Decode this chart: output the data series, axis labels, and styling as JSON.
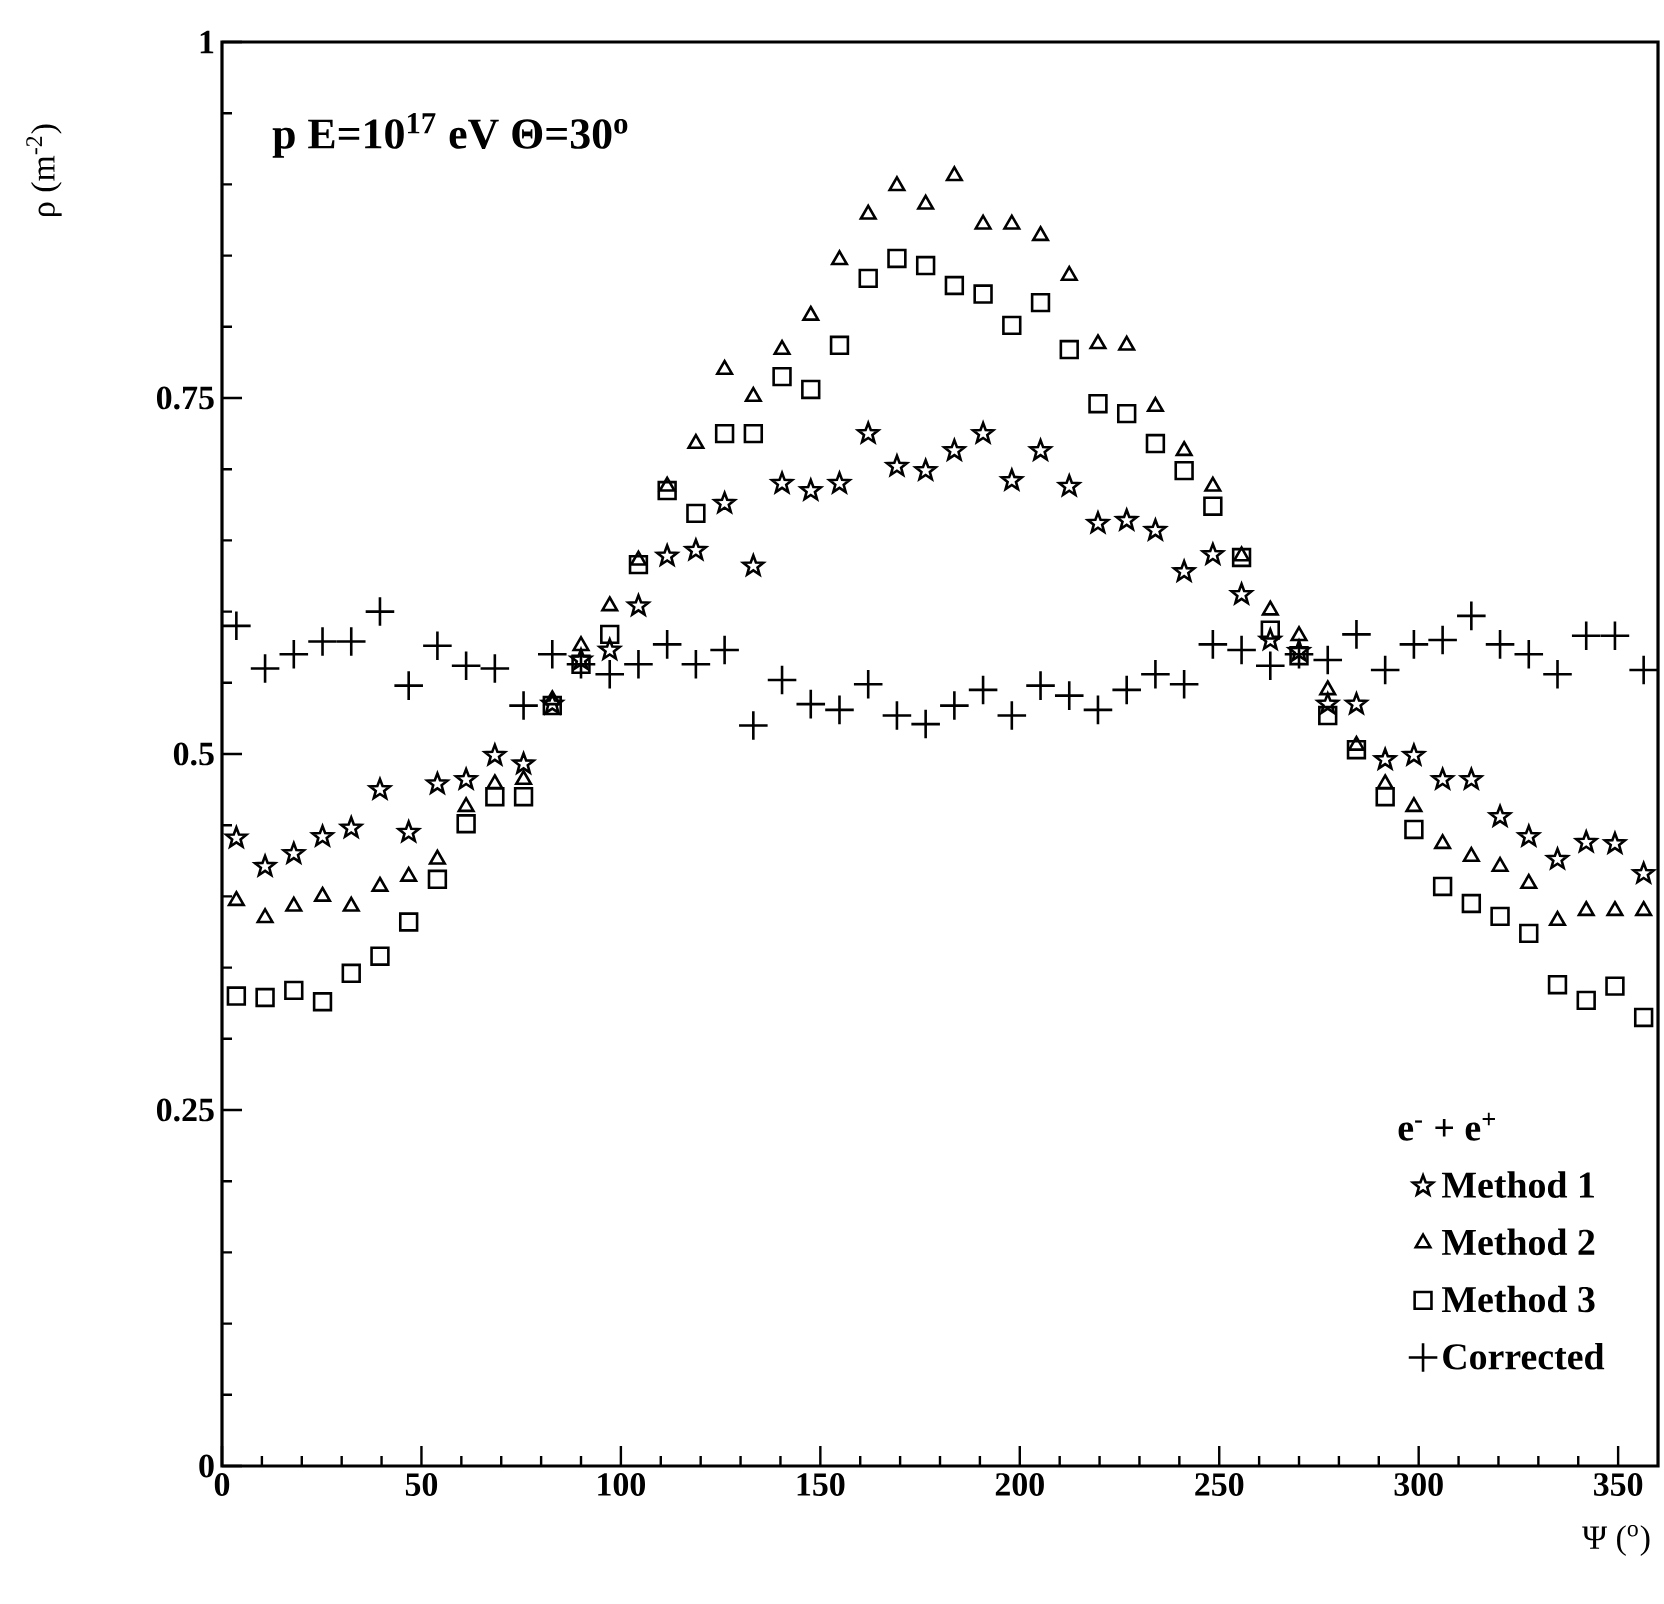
{
  "chart_data": {
    "type": "scatter",
    "annotations": [
      "p E=10$^{17}$ eV Θ=30$^{o}$"
    ],
    "xlabel": "Ψ ($^{o}$)",
    "ylabel": "ρ (m$^{-2}$)",
    "legend_title": "e$^{-}$ + e$^{+}$",
    "x": [
      3.6,
      10.8,
      18,
      25.2,
      32.4,
      39.6,
      46.8,
      54,
      61.2,
      68.4,
      75.6,
      82.8,
      90,
      97.2,
      104.4,
      111.6,
      118.8,
      126,
      133.2,
      140.4,
      147.6,
      154.8,
      162,
      169.2,
      176.4,
      183.6,
      190.8,
      198,
      205.2,
      212.4,
      219.6,
      226.8,
      234,
      241.2,
      248.4,
      255.6,
      262.8,
      270,
      277.2,
      284.4,
      291.6,
      298.8,
      306,
      313.2,
      320.4,
      327.6,
      334.8,
      342,
      349.2,
      356.4
    ],
    "series": [
      {
        "name": "Method 1",
        "color": "#000000",
        "marker": "star",
        "values": [
          0.441,
          0.421,
          0.43,
          0.442,
          0.448,
          0.475,
          0.445,
          0.479,
          0.482,
          0.499,
          0.493,
          0.535,
          0.566,
          0.573,
          0.604,
          0.639,
          0.643,
          0.676,
          0.632,
          0.69,
          0.685,
          0.69,
          0.725,
          0.702,
          0.699,
          0.713,
          0.725,
          0.692,
          0.713,
          0.688,
          0.662,
          0.664,
          0.657,
          0.628,
          0.64,
          0.612,
          0.58,
          0.572,
          0.535,
          0.535,
          0.496,
          0.499,
          0.482,
          0.482,
          0.456,
          0.442,
          0.426,
          0.438,
          0.437,
          0.416
        ]
      },
      {
        "name": "Method 2",
        "color": "#000000",
        "marker": "triangle",
        "values": [
          0.397,
          0.385,
          0.393,
          0.4,
          0.393,
          0.407,
          0.414,
          0.426,
          0.463,
          0.479,
          0.482,
          0.538,
          0.576,
          0.604,
          0.636,
          0.688,
          0.718,
          0.77,
          0.751,
          0.784,
          0.808,
          0.847,
          0.879,
          0.899,
          0.886,
          0.906,
          0.872,
          0.872,
          0.864,
          0.836,
          0.788,
          0.787,
          0.744,
          0.713,
          0.688,
          0.639,
          0.601,
          0.583,
          0.545,
          0.506,
          0.479,
          0.463,
          0.437,
          0.428,
          0.421,
          0.409,
          0.383,
          0.39,
          0.39,
          0.39
        ]
      },
      {
        "name": "Method 3",
        "color": "#000000",
        "marker": "square",
        "values": [
          0.33,
          0.329,
          0.334,
          0.326,
          0.346,
          0.358,
          0.382,
          0.412,
          0.451,
          0.47,
          0.47,
          0.534,
          0.563,
          0.584,
          0.633,
          0.685,
          0.669,
          0.725,
          0.725,
          0.765,
          0.756,
          0.787,
          0.834,
          0.848,
          0.843,
          0.829,
          0.823,
          0.801,
          0.817,
          0.784,
          0.746,
          0.739,
          0.718,
          0.699,
          0.674,
          0.638,
          0.587,
          0.569,
          0.527,
          0.503,
          0.47,
          0.447,
          0.407,
          0.395,
          0.386,
          0.374,
          0.338,
          0.327,
          0.337,
          0.315
        ]
      },
      {
        "name": "Corrected",
        "color": "#000000",
        "marker": "cross",
        "values": [
          0.59,
          0.56,
          0.57,
          0.579,
          0.579,
          0.6,
          0.548,
          0.576,
          0.562,
          0.56,
          0.534,
          0.57,
          0.563,
          0.556,
          0.563,
          0.577,
          0.563,
          0.573,
          0.52,
          0.552,
          0.535,
          0.531,
          0.549,
          0.527,
          0.521,
          0.534,
          0.545,
          0.527,
          0.548,
          0.541,
          0.531,
          0.545,
          0.556,
          0.549,
          0.577,
          0.573,
          0.562,
          0.57,
          0.566,
          0.584,
          0.559,
          0.577,
          0.58,
          0.597,
          0.577,
          0.57,
          0.556,
          0.583,
          0.583,
          0.559
        ]
      }
    ],
    "xlim": [
      0,
      360
    ],
    "xticks": [
      0,
      50,
      100,
      150,
      200,
      250,
      300,
      350
    ],
    "ylim": [
      0,
      1
    ],
    "yticks": [
      0,
      0.25,
      0.5,
      0.75,
      1
    ],
    "grid": false,
    "legend": "bottom right"
  }
}
